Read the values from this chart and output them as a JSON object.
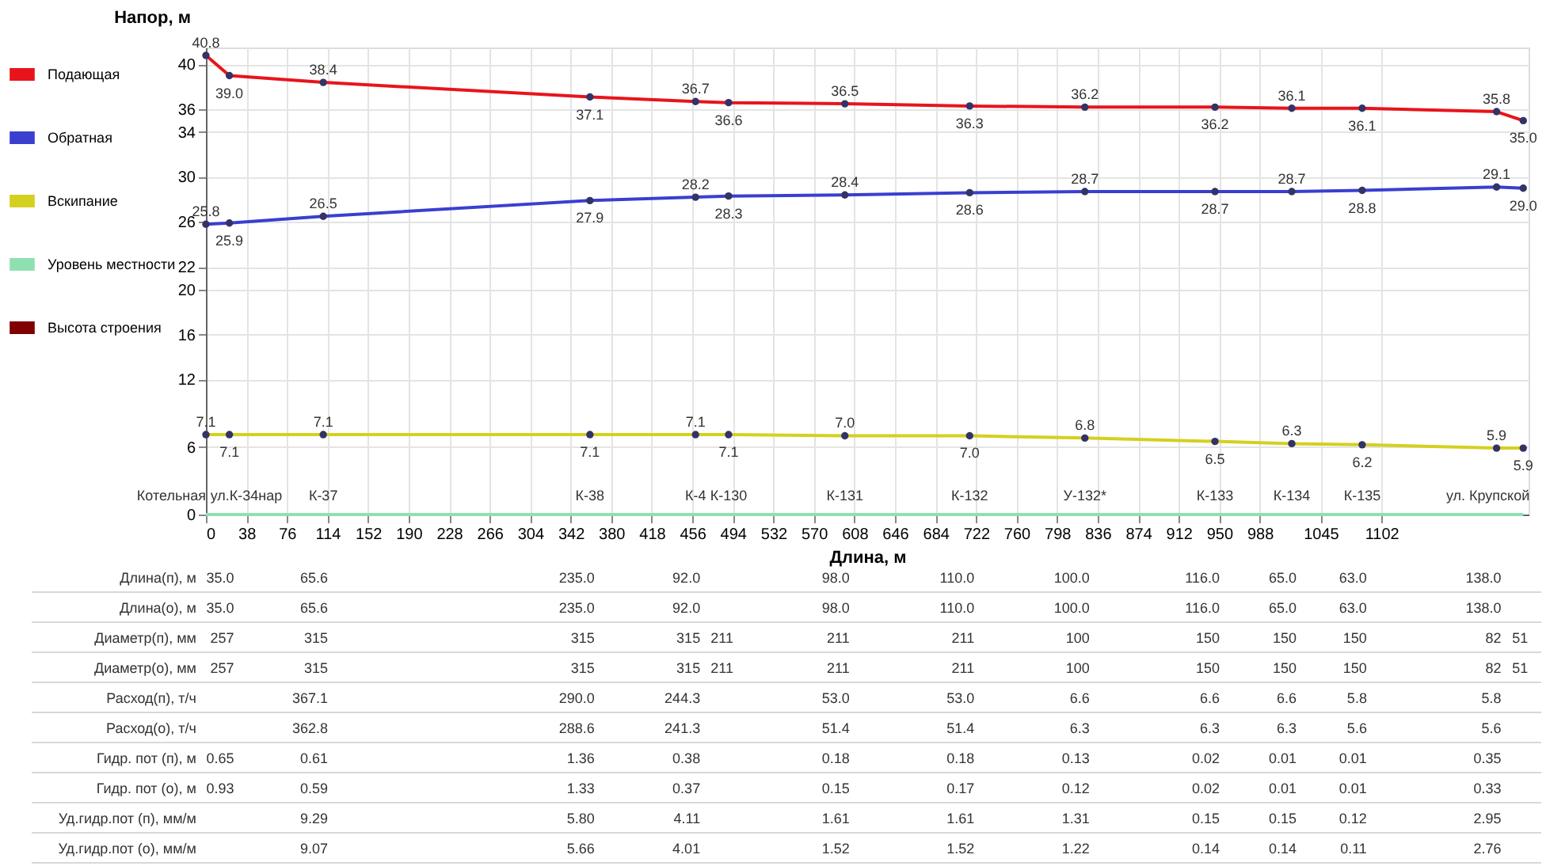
{
  "chart_data": {
    "type": "line",
    "xlabel": "Длина, м",
    "ylabel": "Напор, м",
    "x": [
      0,
      22,
      110,
      360,
      459,
      490,
      599,
      716,
      824,
      946,
      1018,
      1084,
      1210,
      1235
    ],
    "series": [
      {
        "name": "Подающая",
        "color": "#e8141c",
        "values": [
          40.8,
          39.0,
          38.4,
          37.1,
          36.7,
          36.6,
          36.5,
          36.3,
          36.2,
          36.2,
          36.1,
          36.1,
          35.8,
          35.0
        ],
        "value_labels": [
          "40.8",
          "39.0",
          "38.4",
          "37.1",
          "36.7",
          "36.6",
          "36.5",
          "36.3",
          "36.2",
          "36.2",
          "36.1",
          "36.1",
          "35.8",
          "35.0"
        ]
      },
      {
        "name": "Обратная",
        "color": "#3a3fd0",
        "values": [
          25.8,
          25.9,
          26.5,
          27.9,
          28.2,
          28.3,
          28.4,
          28.6,
          28.7,
          28.7,
          28.7,
          28.8,
          29.1,
          29.0
        ],
        "value_labels": [
          "25.8",
          "25.9",
          "26.5",
          "27.9",
          "28.2",
          "28.3",
          "28.4",
          "28.6",
          "28.7",
          "28.7",
          "28.7",
          "28.8",
          "29.1",
          "29.0"
        ]
      },
      {
        "name": "Вскипание",
        "color": "#d4d020",
        "values": [
          7.1,
          7.1,
          7.1,
          7.1,
          7.1,
          7.1,
          7.0,
          7.0,
          6.8,
          6.5,
          6.3,
          6.2,
          5.9,
          5.9
        ],
        "value_labels": [
          "7.1",
          "7.1",
          "7.1",
          "7.1",
          "7.1",
          "7.1",
          "7.0",
          "7.0",
          "6.8",
          "6.5",
          "6.3",
          "6.2",
          "5.9",
          "5.9"
        ]
      },
      {
        "name": "Уровень местности",
        "color": "#8fe0b0",
        "marker": "none",
        "values": [
          0,
          0,
          0,
          0,
          0,
          0,
          0,
          0,
          0,
          0,
          0,
          0,
          0,
          0
        ]
      },
      {
        "name": "Высота строения",
        "color": "#800000",
        "marker": "none",
        "values": [
          null,
          null,
          null,
          null,
          null,
          null,
          null,
          null,
          null,
          null,
          null,
          null,
          null,
          null
        ]
      }
    ],
    "xlim": [
      0,
      1240
    ],
    "xticks": [
      0,
      38,
      76,
      114,
      152,
      190,
      228,
      266,
      304,
      342,
      380,
      418,
      456,
      494,
      532,
      570,
      608,
      646,
      684,
      722,
      760,
      798,
      836,
      874,
      912,
      950,
      988,
      1045,
      1102
    ],
    "ylim": [
      0,
      41.5
    ],
    "yticks": [
      0,
      6,
      12,
      16,
      20,
      22,
      26,
      30,
      34,
      36,
      40
    ],
    "grid": true,
    "legend": "left",
    "marker": "circle",
    "annotations": [
      {
        "text": "Котельная",
        "x": 0,
        "y": 0
      },
      {
        "text": "ул.К-34нар",
        "x": 22,
        "y": 0
      },
      {
        "text": "К-37",
        "x": 110,
        "y": 0
      },
      {
        "text": "К-38",
        "x": 360,
        "y": 0
      },
      {
        "text": "К-4",
        "x": 459,
        "y": 0
      },
      {
        "text": "К-130",
        "x": 490,
        "y": 0
      },
      {
        "text": "К-131",
        "x": 599,
        "y": 0
      },
      {
        "text": "К-132",
        "x": 716,
        "y": 0
      },
      {
        "text": "У-132*",
        "x": 824,
        "y": 0
      },
      {
        "text": "К-133",
        "x": 946,
        "y": 0
      },
      {
        "text": "К-134",
        "x": 1018,
        "y": 0
      },
      {
        "text": "К-135",
        "x": 1084,
        "y": 0
      },
      {
        "text": "ул. Крупской",
        "x": 1235,
        "y": 0
      },
      "Длина(п), м",
      "35.0",
      "65.6",
      "235.0",
      "92.0",
      null,
      "98.0",
      "110.0",
      "100.0",
      "116.0",
      "65.0",
      "63.0",
      "138.0",
      null,
      "Длина(о), м",
      "35.0",
      "65.6",
      "235.0",
      "92.0",
      null,
      "98.0",
      "110.0",
      "100.0",
      "116.0",
      "65.0",
      "63.0",
      "138.0",
      null,
      "Диаметр(п), мм",
      "257",
      "315",
      "315",
      "315",
      "211",
      "211",
      "211",
      "100",
      "150",
      "150",
      "150",
      "82",
      "51",
      "Диаметр(о), мм",
      "257",
      "315",
      "315",
      "315",
      "211",
      "211",
      "211",
      "100",
      "150",
      "150",
      "150",
      "82",
      "51",
      "Расход(п), т/ч",
      null,
      "367.1",
      "290.0",
      "244.3",
      null,
      "53.0",
      "53.0",
      "6.6",
      "6.6",
      "6.6",
      "5.8",
      "5.8",
      null,
      "Расход(о), т/ч",
      null,
      "362.8",
      "288.6",
      "241.3",
      null,
      "51.4",
      "51.4",
      "6.3",
      "6.3",
      "6.3",
      "5.6",
      "5.6",
      null,
      "Гидр. пот (п), м",
      "0.65",
      "0.61",
      "1.36",
      "0.38",
      null,
      "0.18",
      "0.18",
      "0.13",
      "0.02",
      "0.01",
      "0.01",
      "0.35",
      null,
      "Гидр. пот (о), м",
      "0.93",
      "0.59",
      "1.33",
      "0.37",
      null,
      "0.15",
      "0.17",
      "0.12",
      "0.02",
      "0.01",
      "0.01",
      "0.33",
      null,
      "Уд.гидр.пот (п), мм/м",
      null,
      "9.29",
      "5.80",
      "4.11",
      null,
      "1.61",
      "1.61",
      "1.31",
      "0.15",
      "0.15",
      "0.12",
      "2.95",
      null,
      "Уд.гидр.пот (о), мм/м",
      null,
      "9.07",
      "5.66",
      "4.01",
      null,
      "1.52",
      "1.52",
      "1.22",
      "0.14",
      "0.14",
      "0.11",
      "2.76",
      null
    ]
  }
}
